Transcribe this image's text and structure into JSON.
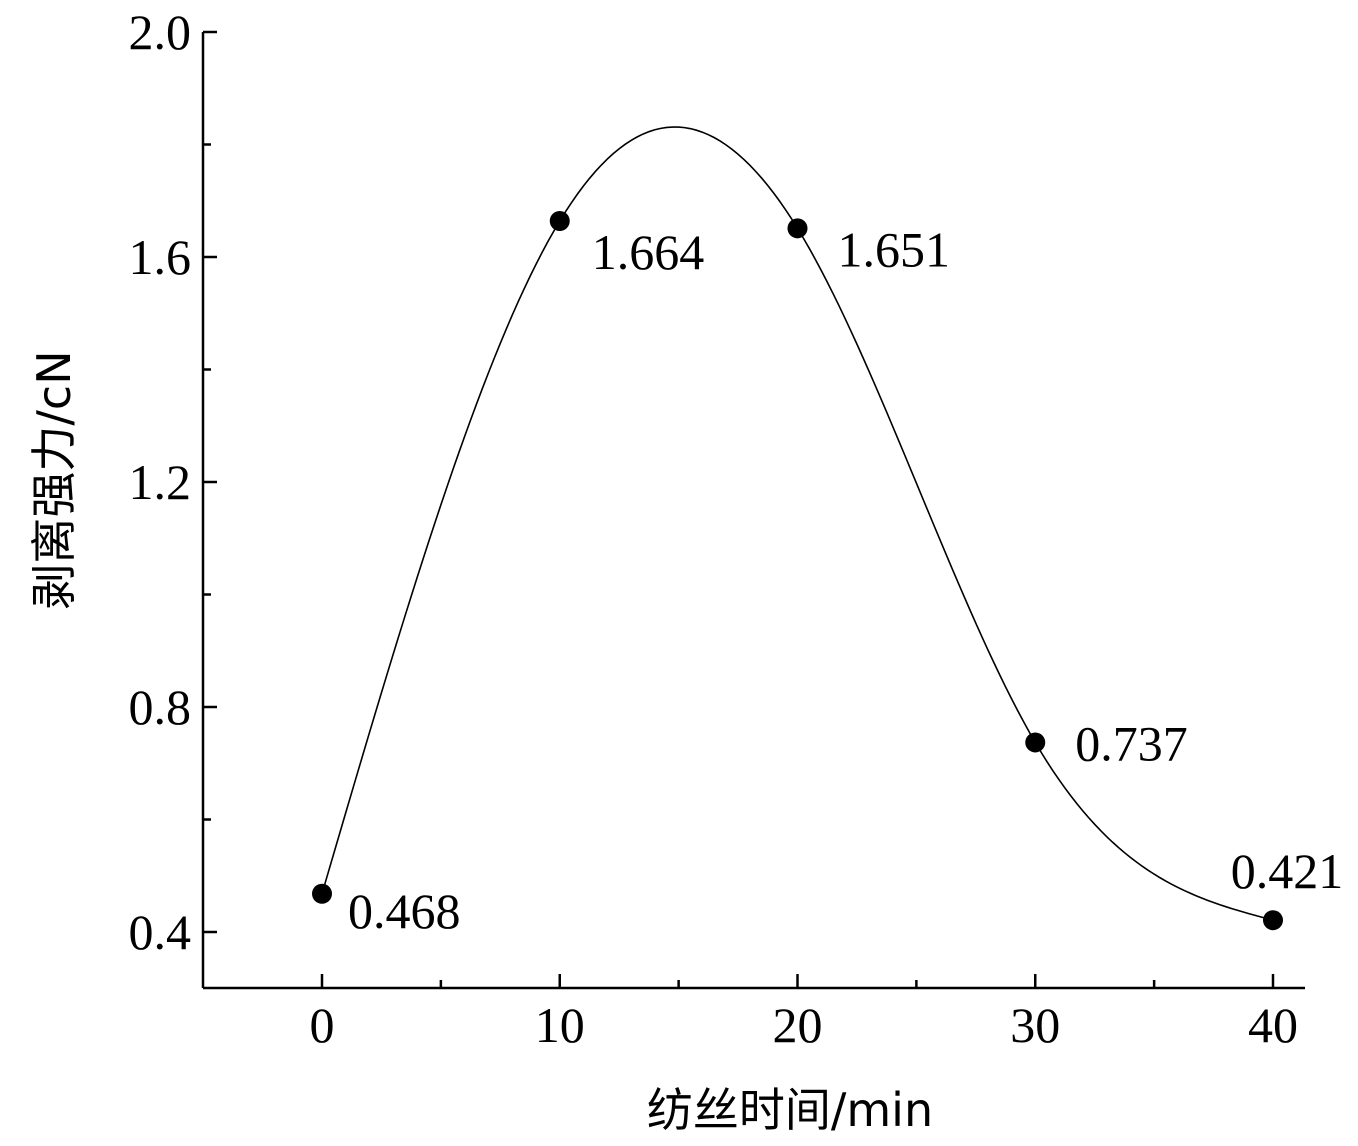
{
  "chart_data": {
    "type": "line",
    "title": "",
    "xlabel": "纺丝时间/min",
    "ylabel": "剥离强力/cN",
    "xlim": [
      -5,
      42
    ],
    "ylim": [
      0.3,
      2.0
    ],
    "xticks": [
      0,
      10,
      20,
      30,
      40
    ],
    "xtick_labels": [
      "0",
      "10",
      "20",
      "30",
      "40"
    ],
    "xminor_ticks": [
      5,
      15,
      25,
      35
    ],
    "yticks": [
      0.4,
      0.8,
      1.2,
      1.6,
      2.0
    ],
    "ytick_labels": [
      "0.4",
      "0.8",
      "1.2",
      "1.6",
      "2.0"
    ],
    "yminor_ticks": [
      0.6,
      1.0,
      1.4,
      1.8
    ],
    "grid": false,
    "legend": "none",
    "smooth_curve": true,
    "series": [
      {
        "x": [
          0,
          10,
          20,
          30,
          40
        ],
        "values": [
          0.468,
          1.664,
          1.651,
          0.737,
          0.421
        ],
        "labels": [
          "0.468",
          "1.664",
          "1.651",
          "0.737",
          "0.421"
        ],
        "color": "#000000"
      }
    ]
  }
}
